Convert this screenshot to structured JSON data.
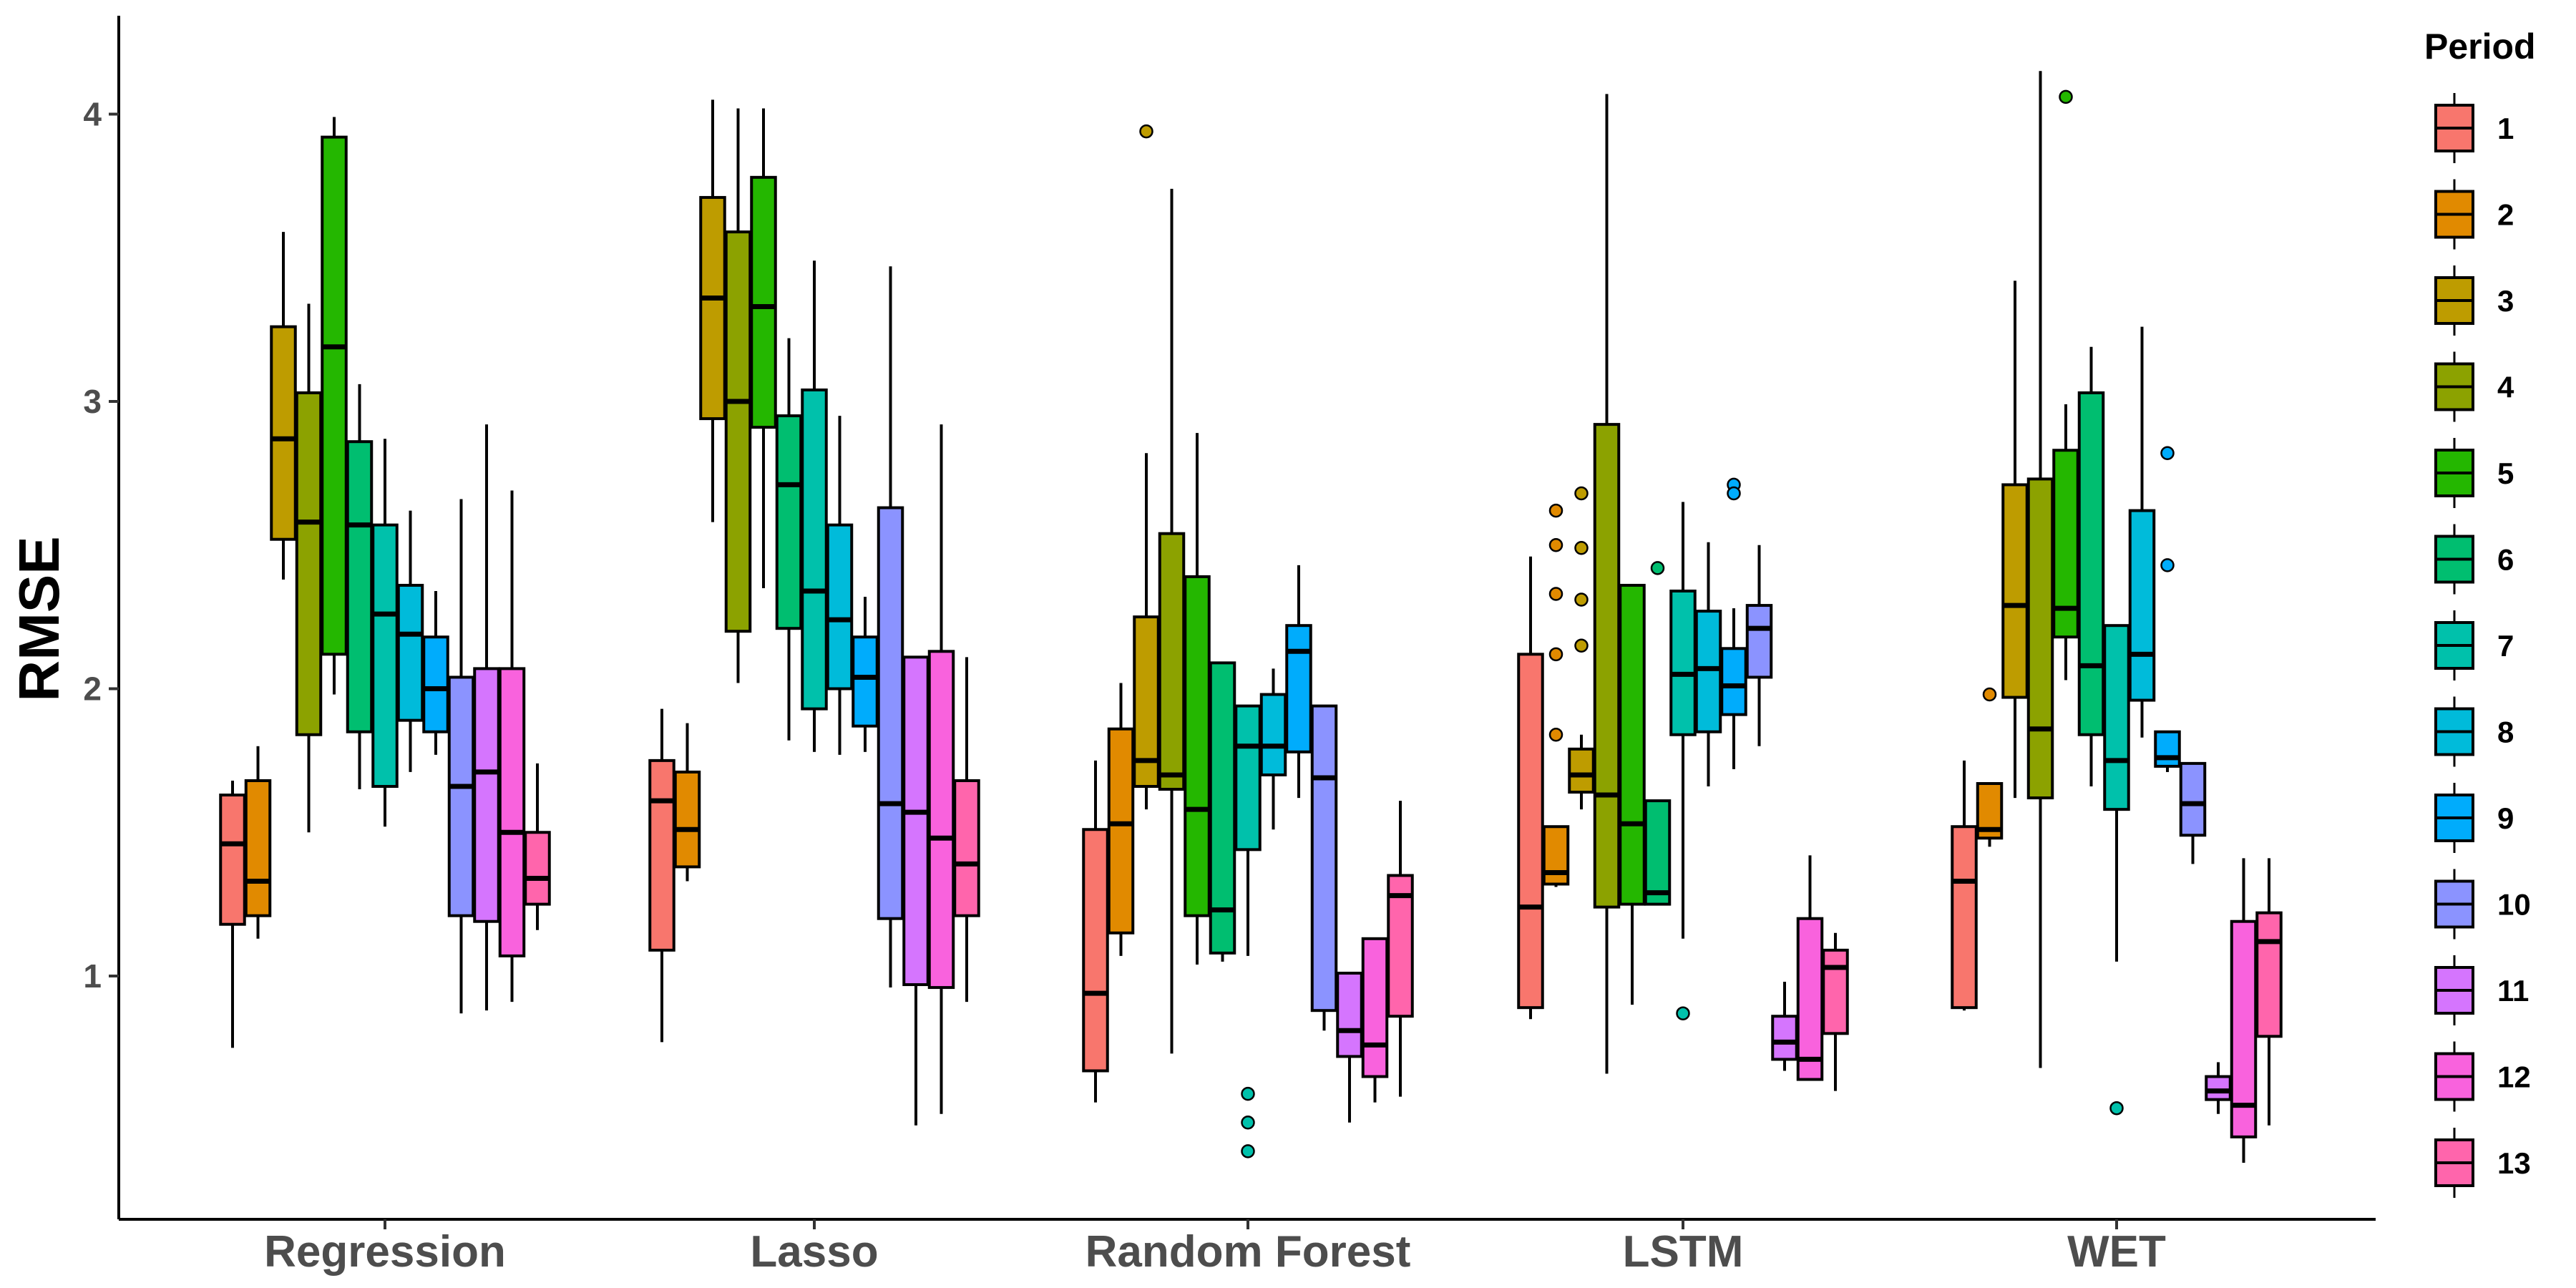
{
  "chart_data": {
    "type": "boxplot",
    "ylabel": "RMSE",
    "categories": [
      "Regression",
      "Lasso",
      "Random Forest",
      "LSTM",
      "WET"
    ],
    "yticks": [
      1,
      2,
      3,
      4
    ],
    "ylim": [
      0.22,
      4.15
    ],
    "legend_title": "Period",
    "legend_position": "right",
    "grid": false,
    "series": [
      {
        "name": "1",
        "color": "#F8766D",
        "boxes": [
          {
            "q1": 1.18,
            "median": 1.46,
            "q3": 1.63,
            "wlo": 0.75,
            "whi": 1.68,
            "outliers": []
          },
          {
            "q1": 1.09,
            "median": 1.61,
            "q3": 1.75,
            "wlo": 0.77,
            "whi": 1.93,
            "outliers": []
          },
          {
            "q1": 0.67,
            "median": 0.94,
            "q3": 1.51,
            "wlo": 0.56,
            "whi": 1.75,
            "outliers": []
          },
          {
            "q1": 0.89,
            "median": 1.24,
            "q3": 2.12,
            "wlo": 0.85,
            "whi": 2.46,
            "outliers": []
          },
          {
            "q1": 0.89,
            "median": 1.33,
            "q3": 1.52,
            "wlo": 0.88,
            "whi": 1.75,
            "outliers": []
          }
        ]
      },
      {
        "name": "2",
        "color": "#E18A00",
        "boxes": [
          {
            "q1": 1.21,
            "median": 1.33,
            "q3": 1.68,
            "wlo": 1.13,
            "whi": 1.8,
            "outliers": []
          },
          {
            "q1": 1.38,
            "median": 1.51,
            "q3": 1.71,
            "wlo": 1.33,
            "whi": 1.88,
            "outliers": []
          },
          {
            "q1": 1.15,
            "median": 1.53,
            "q3": 1.86,
            "wlo": 1.07,
            "whi": 2.02,
            "outliers": []
          },
          {
            "q1": 1.32,
            "median": 1.36,
            "q3": 1.52,
            "wlo": 1.31,
            "whi": 1.52,
            "outliers": [
              2.62,
              2.5,
              2.33,
              2.12,
              1.84
            ]
          },
          {
            "q1": 1.48,
            "median": 1.51,
            "q3": 1.67,
            "wlo": 1.45,
            "whi": 1.67,
            "outliers": [
              1.98
            ]
          }
        ]
      },
      {
        "name": "3",
        "color": "#BE9C00",
        "boxes": [
          {
            "q1": 2.52,
            "median": 2.87,
            "q3": 3.26,
            "wlo": 2.38,
            "whi": 3.59,
            "outliers": []
          },
          {
            "q1": 2.94,
            "median": 3.36,
            "q3": 3.71,
            "wlo": 2.58,
            "whi": 4.05,
            "outliers": []
          },
          {
            "q1": 1.66,
            "median": 1.75,
            "q3": 2.25,
            "wlo": 1.58,
            "whi": 2.82,
            "outliers": [
              3.94
            ]
          },
          {
            "q1": 1.64,
            "median": 1.7,
            "q3": 1.79,
            "wlo": 1.58,
            "whi": 1.84,
            "outliers": [
              2.68,
              2.49,
              2.31,
              2.15
            ]
          },
          {
            "q1": 1.97,
            "median": 2.29,
            "q3": 2.71,
            "wlo": 1.62,
            "whi": 3.42,
            "outliers": []
          }
        ]
      },
      {
        "name": "4",
        "color": "#8CA200",
        "boxes": [
          {
            "q1": 1.84,
            "median": 2.58,
            "q3": 3.03,
            "wlo": 1.5,
            "whi": 3.34,
            "outliers": []
          },
          {
            "q1": 2.2,
            "median": 3.0,
            "q3": 3.59,
            "wlo": 2.02,
            "whi": 4.02,
            "outliers": []
          },
          {
            "q1": 1.65,
            "median": 1.7,
            "q3": 2.54,
            "wlo": 0.73,
            "whi": 3.74,
            "outliers": []
          },
          {
            "q1": 1.24,
            "median": 1.63,
            "q3": 2.92,
            "wlo": 0.66,
            "whi": 4.07,
            "outliers": []
          },
          {
            "q1": 1.62,
            "median": 1.86,
            "q3": 2.73,
            "wlo": 0.68,
            "whi": 4.15,
            "outliers": []
          }
        ]
      },
      {
        "name": "5",
        "color": "#24B700",
        "boxes": [
          {
            "q1": 2.12,
            "median": 3.19,
            "q3": 3.92,
            "wlo": 1.98,
            "whi": 3.99,
            "outliers": []
          },
          {
            "q1": 2.91,
            "median": 3.33,
            "q3": 3.78,
            "wlo": 2.35,
            "whi": 4.02,
            "outliers": []
          },
          {
            "q1": 1.21,
            "median": 1.58,
            "q3": 2.39,
            "wlo": 1.04,
            "whi": 2.89,
            "outliers": []
          },
          {
            "q1": 1.25,
            "median": 1.53,
            "q3": 2.36,
            "wlo": 0.9,
            "whi": 2.36,
            "outliers": []
          },
          {
            "q1": 2.18,
            "median": 2.28,
            "q3": 2.83,
            "wlo": 2.03,
            "whi": 2.99,
            "outliers": [
              4.06
            ]
          }
        ]
      },
      {
        "name": "6",
        "color": "#00BE70",
        "boxes": [
          {
            "q1": 1.85,
            "median": 2.57,
            "q3": 2.86,
            "wlo": 1.65,
            "whi": 3.06,
            "outliers": []
          },
          {
            "q1": 2.21,
            "median": 2.71,
            "q3": 2.95,
            "wlo": 1.82,
            "whi": 3.22,
            "outliers": []
          },
          {
            "q1": 1.08,
            "median": 1.23,
            "q3": 2.09,
            "wlo": 1.05,
            "whi": 2.09,
            "outliers": []
          },
          {
            "q1": 1.25,
            "median": 1.29,
            "q3": 1.61,
            "wlo": 1.25,
            "whi": 1.61,
            "outliers": [
              2.42
            ]
          },
          {
            "q1": 1.84,
            "median": 2.08,
            "q3": 3.03,
            "wlo": 1.66,
            "whi": 3.19,
            "outliers": []
          }
        ]
      },
      {
        "name": "7",
        "color": "#00C1AB",
        "boxes": [
          {
            "q1": 1.66,
            "median": 2.26,
            "q3": 2.57,
            "wlo": 1.52,
            "whi": 2.87,
            "outliers": []
          },
          {
            "q1": 1.93,
            "median": 2.34,
            "q3": 3.04,
            "wlo": 1.78,
            "whi": 3.49,
            "outliers": []
          },
          {
            "q1": 1.44,
            "median": 1.8,
            "q3": 1.94,
            "wlo": 1.07,
            "whi": 1.94,
            "outliers": [
              0.59,
              0.49,
              0.39
            ]
          },
          {
            "q1": 1.84,
            "median": 2.05,
            "q3": 2.34,
            "wlo": 1.13,
            "whi": 2.65,
            "outliers": [
              0.87
            ]
          },
          {
            "q1": 1.58,
            "median": 1.75,
            "q3": 2.22,
            "wlo": 1.05,
            "whi": 2.22,
            "outliers": [
              0.54
            ]
          }
        ]
      },
      {
        "name": "8",
        "color": "#00BBDA",
        "boxes": [
          {
            "q1": 1.89,
            "median": 2.19,
            "q3": 2.36,
            "wlo": 1.71,
            "whi": 2.62,
            "outliers": []
          },
          {
            "q1": 2.0,
            "median": 2.24,
            "q3": 2.57,
            "wlo": 1.77,
            "whi": 2.95,
            "outliers": []
          },
          {
            "q1": 1.7,
            "median": 1.8,
            "q3": 1.98,
            "wlo": 1.51,
            "whi": 2.07,
            "outliers": []
          },
          {
            "q1": 1.85,
            "median": 2.07,
            "q3": 2.27,
            "wlo": 1.66,
            "whi": 2.51,
            "outliers": []
          },
          {
            "q1": 1.96,
            "median": 2.12,
            "q3": 2.62,
            "wlo": 1.83,
            "whi": 3.26,
            "outliers": []
          }
        ]
      },
      {
        "name": "9",
        "color": "#00ACFC",
        "boxes": [
          {
            "q1": 1.85,
            "median": 2.0,
            "q3": 2.18,
            "wlo": 1.77,
            "whi": 2.34,
            "outliers": []
          },
          {
            "q1": 1.87,
            "median": 2.04,
            "q3": 2.18,
            "wlo": 1.78,
            "whi": 2.32,
            "outliers": []
          },
          {
            "q1": 1.78,
            "median": 2.13,
            "q3": 2.22,
            "wlo": 1.62,
            "whi": 2.43,
            "outliers": []
          },
          {
            "q1": 1.91,
            "median": 2.01,
            "q3": 2.14,
            "wlo": 1.72,
            "whi": 2.28,
            "outliers": [
              2.71,
              2.68
            ]
          },
          {
            "q1": 1.73,
            "median": 1.76,
            "q3": 1.85,
            "wlo": 1.71,
            "whi": 1.85,
            "outliers": [
              2.82,
              2.43
            ]
          }
        ]
      },
      {
        "name": "10",
        "color": "#8B93FF",
        "boxes": [
          {
            "q1": 1.21,
            "median": 1.66,
            "q3": 2.04,
            "wlo": 0.87,
            "whi": 2.66,
            "outliers": []
          },
          {
            "q1": 1.2,
            "median": 1.6,
            "q3": 2.63,
            "wlo": 0.96,
            "whi": 3.47,
            "outliers": []
          },
          {
            "q1": 0.88,
            "median": 1.69,
            "q3": 1.94,
            "wlo": 0.81,
            "whi": 1.94,
            "outliers": []
          },
          {
            "q1": 2.04,
            "median": 2.21,
            "q3": 2.29,
            "wlo": 1.8,
            "whi": 2.5,
            "outliers": []
          },
          {
            "q1": 1.49,
            "median": 1.6,
            "q3": 1.74,
            "wlo": 1.39,
            "whi": 1.74,
            "outliers": []
          }
        ]
      },
      {
        "name": "11",
        "color": "#D575FE",
        "boxes": [
          {
            "q1": 1.19,
            "median": 1.71,
            "q3": 2.07,
            "wlo": 0.88,
            "whi": 2.92,
            "outliers": []
          },
          {
            "q1": 0.97,
            "median": 1.57,
            "q3": 2.11,
            "wlo": 0.48,
            "whi": 2.11,
            "outliers": []
          },
          {
            "q1": 0.72,
            "median": 0.81,
            "q3": 1.01,
            "wlo": 0.49,
            "whi": 1.01,
            "outliers": []
          },
          {
            "q1": 0.71,
            "median": 0.77,
            "q3": 0.86,
            "wlo": 0.67,
            "whi": 0.98,
            "outliers": []
          },
          {
            "q1": 0.57,
            "median": 0.6,
            "q3": 0.65,
            "wlo": 0.52,
            "whi": 0.7,
            "outliers": []
          }
        ]
      },
      {
        "name": "12",
        "color": "#F962DD",
        "boxes": [
          {
            "q1": 1.07,
            "median": 1.5,
            "q3": 2.07,
            "wlo": 0.91,
            "whi": 2.69,
            "outliers": []
          },
          {
            "q1": 0.96,
            "median": 1.48,
            "q3": 2.13,
            "wlo": 0.52,
            "whi": 2.92,
            "outliers": []
          },
          {
            "q1": 0.65,
            "median": 0.76,
            "q3": 1.13,
            "wlo": 0.56,
            "whi": 1.13,
            "outliers": []
          },
          {
            "q1": 0.64,
            "median": 0.71,
            "q3": 1.2,
            "wlo": 0.64,
            "whi": 1.42,
            "outliers": []
          },
          {
            "q1": 0.44,
            "median": 0.55,
            "q3": 1.19,
            "wlo": 0.35,
            "whi": 1.41,
            "outliers": []
          }
        ]
      },
      {
        "name": "13",
        "color": "#FF65AC",
        "boxes": [
          {
            "q1": 1.25,
            "median": 1.34,
            "q3": 1.5,
            "wlo": 1.16,
            "whi": 1.74,
            "outliers": []
          },
          {
            "q1": 1.21,
            "median": 1.39,
            "q3": 1.68,
            "wlo": 0.91,
            "whi": 2.11,
            "outliers": []
          },
          {
            "q1": 0.86,
            "median": 1.28,
            "q3": 1.35,
            "wlo": 0.58,
            "whi": 1.61,
            "outliers": []
          },
          {
            "q1": 0.8,
            "median": 1.03,
            "q3": 1.09,
            "wlo": 0.6,
            "whi": 1.15,
            "outliers": []
          },
          {
            "q1": 0.79,
            "median": 1.12,
            "q3": 1.22,
            "wlo": 0.48,
            "whi": 1.41,
            "outliers": []
          }
        ]
      }
    ]
  }
}
